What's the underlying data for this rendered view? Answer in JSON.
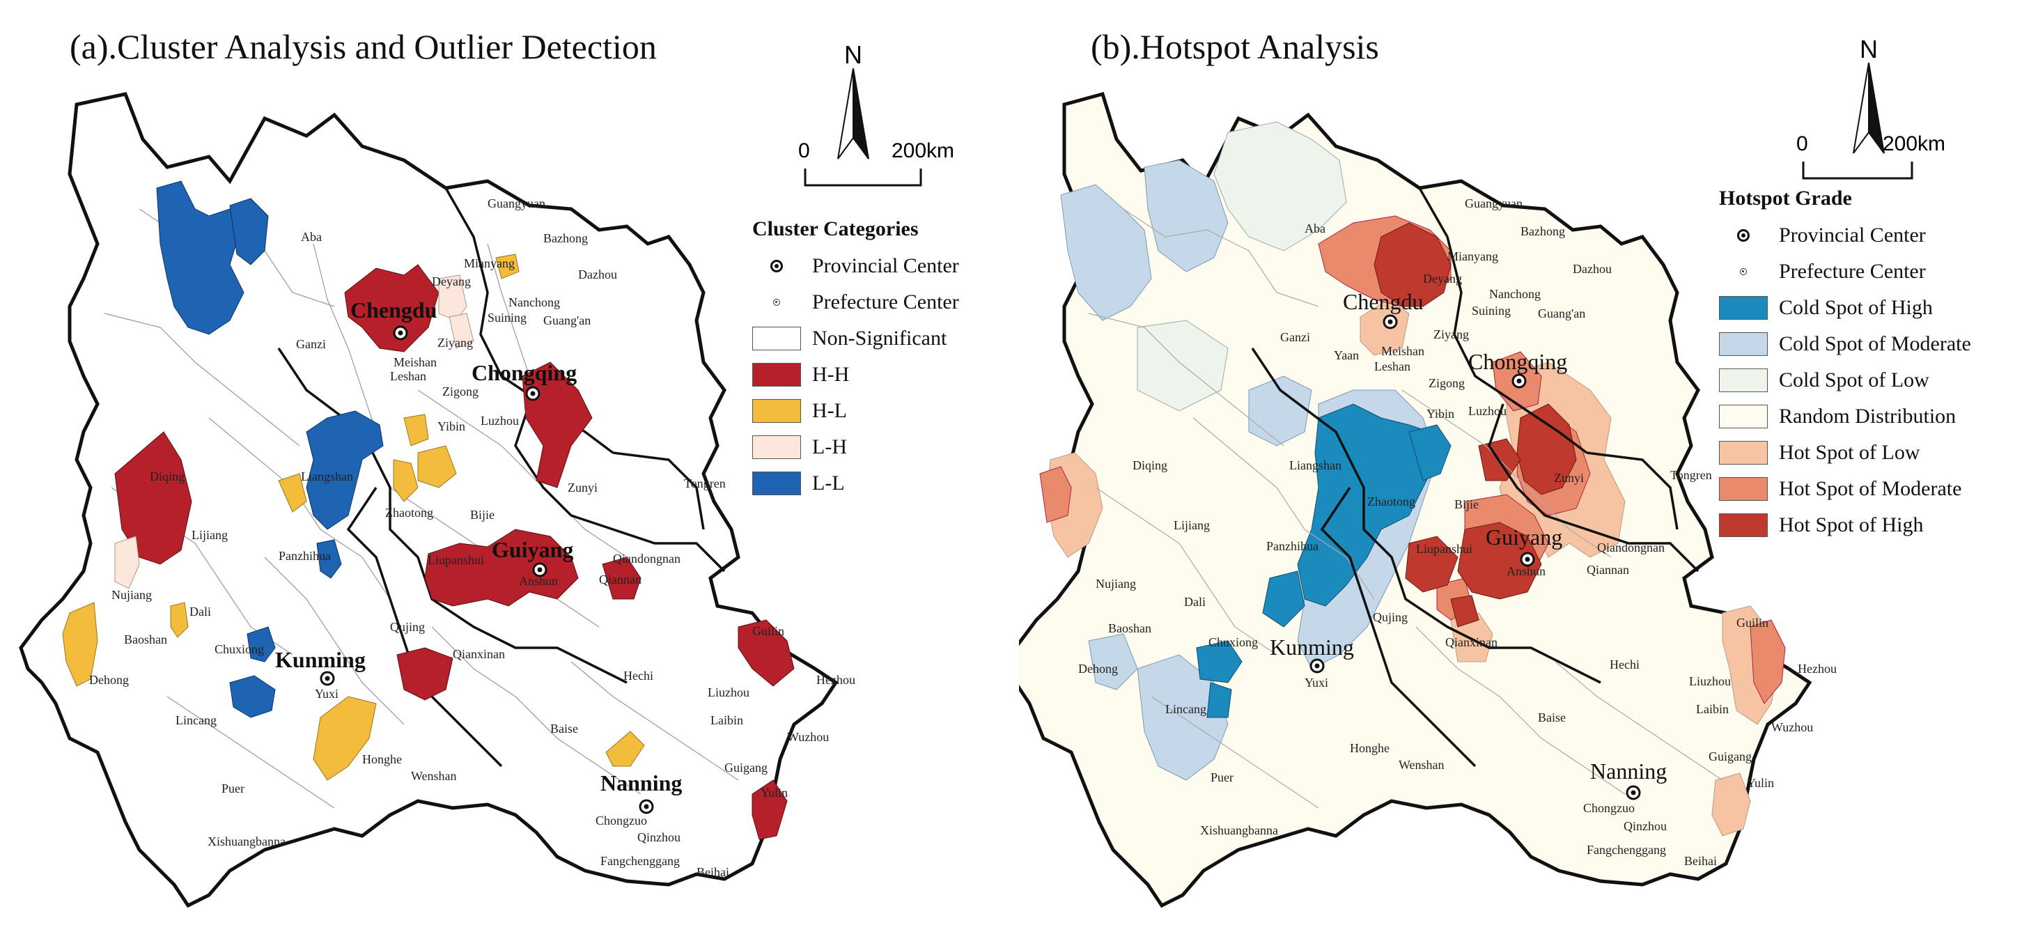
{
  "panel_a": {
    "title": "(a).Cluster Analysis and Outlier Detection",
    "north_label": "N",
    "scale": {
      "zero": "0",
      "end": "200km"
    },
    "legend": {
      "title": "Cluster Categories",
      "items": [
        {
          "label": "Provincial  Center",
          "kind": "provincial-symbol"
        },
        {
          "label": "Prefecture  Center",
          "kind": "prefecture-symbol"
        },
        {
          "label": "Non-Significant",
          "color": "#ffffff"
        },
        {
          "label": "H-H",
          "color": "#b5202a"
        },
        {
          "label": "H-L",
          "color": "#f3bc3c"
        },
        {
          "label": "L-H",
          "color": "#fde6dc"
        },
        {
          "label": "L-L",
          "color": "#1f64b3"
        }
      ]
    }
  },
  "panel_b": {
    "title": "(b).Hotspot Analysis",
    "north_label": "N",
    "scale": {
      "zero": "0",
      "end": "200km"
    },
    "legend": {
      "title": "Hotspot Grade",
      "items": [
        {
          "label": "Provincial Center",
          "kind": "provincial-symbol"
        },
        {
          "label": "Prefecture Center",
          "kind": "prefecture-symbol"
        },
        {
          "label": "Cold Spot of High",
          "color": "#1b8bbd"
        },
        {
          "label": "Cold Spot of Moderate",
          "color": "#c4d8ea"
        },
        {
          "label": "Cold Spot of Low",
          "color": "#eef4ec"
        },
        {
          "label": "Random Distribution",
          "color": "#fdfcee"
        },
        {
          "label": "Hot Spot of Low",
          "color": "#f7c4a3"
        },
        {
          "label": "Hot Spot of Moderate",
          "color": "#ea8a6c"
        },
        {
          "label": "Hot Spot of High",
          "color": "#c0392e"
        }
      ]
    }
  },
  "provincial_centers": [
    "Chengdu",
    "Chongqing",
    "Guiyang",
    "Kunming",
    "Nanning"
  ],
  "panel_b_provincial_labels": [
    "Chengdu",
    "Chongqing",
    "Guiyang",
    "Kunming",
    "Nanning"
  ],
  "prefecture_centers_a": [
    "Guangyuan",
    "Aba",
    "Mianyang",
    "Bazhong",
    "Dazhou",
    "Deyang",
    "Nanchong",
    "Suining",
    "Guang'an",
    "Ziyang",
    "Ganzi",
    "Meishan",
    "Leshan",
    "Zigong",
    "Yibin",
    "Luzhou",
    "Diqing",
    "Liangshan",
    "Zhaotong",
    "Bijie",
    "Zunyi",
    "Tongren",
    "Lijiang",
    "Nujiang",
    "Dali",
    "Panzhihua",
    "Liupanshui",
    "Anshun",
    "Qiandongnan",
    "Qiannan",
    "Baoshan",
    "Chuxiong",
    "Qujing",
    "Dehong",
    "Qianxinan",
    "Yuxi",
    "Guilin",
    "Hechi",
    "Hezhou",
    "Liuzhou",
    "Lincang",
    "Laibin",
    "Wuzhou",
    "Baise",
    "Honghe",
    "Wenshan",
    "Guigang",
    "Yulin",
    "Puer",
    "Chongzuo",
    "Qinzhou",
    "Xishuangbanna",
    "Fangchenggang",
    "Beihai"
  ],
  "prefecture_centers_b": [
    "Guangyuan",
    "Aba",
    "Mianyang",
    "Bazhong",
    "Dazhou",
    "Deyang",
    "Nanchong",
    "Suining",
    "Guang'an",
    "Ziyang",
    "Ganzi",
    "Yaan",
    "Meishan",
    "Leshan",
    "Zigong",
    "Yibin",
    "Luzhou",
    "Diqing",
    "Liangshan",
    "Zhaotong",
    "Bijie",
    "Zunyi",
    "Tongren",
    "Lijiang",
    "Nujiang",
    "Dali",
    "Panzhihua",
    "Liupanshui",
    "Anshun",
    "Qiandongnan",
    "Qiannan",
    "Baoshan",
    "Chuxiong",
    "Qujing",
    "Dehong",
    "Qianxinan",
    "Yuxi",
    "Guilin",
    "Hechi",
    "Hezhou",
    "Liuzhou",
    "Lincang",
    "Laibin",
    "Wuzhou",
    "Baise",
    "Honghe",
    "Wenshan",
    "Guigang",
    "Yulin",
    "Puer",
    "Chongzuo",
    "Qinzhou",
    "Xishuangbanna",
    "Fangchenggang",
    "Beihai"
  ]
}
